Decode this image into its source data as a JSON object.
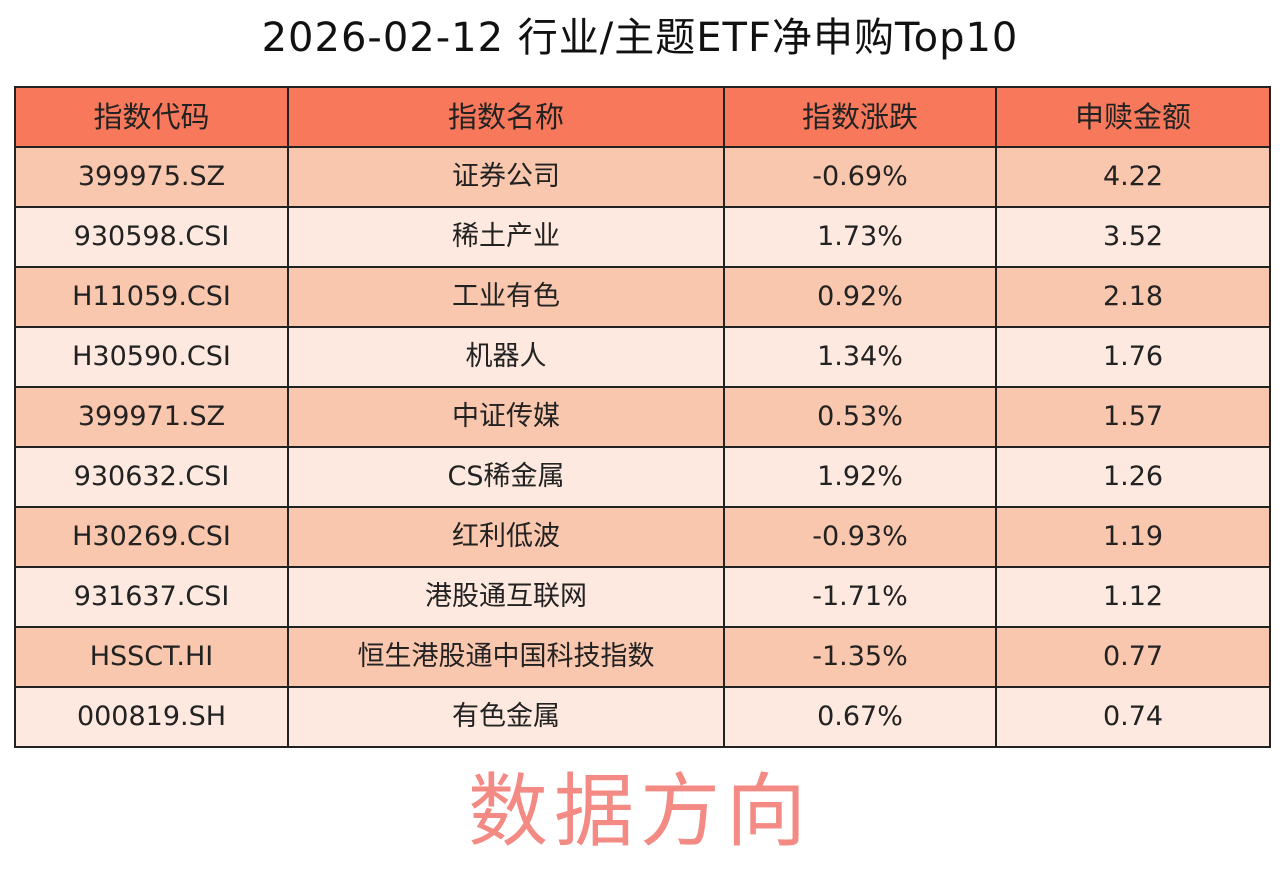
{
  "title": "2026-02-12 行业/主题ETF净申购Top10",
  "watermark": "数据方向",
  "colors": {
    "header": "#F7785A",
    "row_odd": "#F9C6AE",
    "row_even": "#FDE9DF",
    "watermark": "#EB3C32"
  },
  "chart_data": {
    "type": "table",
    "title": "2026-02-12 行业/主题ETF净申购Top10",
    "columns": [
      "指数代码",
      "指数名称",
      "指数涨跌",
      "申赎金额"
    ],
    "rows": [
      [
        "399975.SZ",
        "证券公司",
        "-0.69%",
        "4.22"
      ],
      [
        "930598.CSI",
        "稀土产业",
        "1.73%",
        "3.52"
      ],
      [
        "H11059.CSI",
        "工业有色",
        "0.92%",
        "2.18"
      ],
      [
        "H30590.CSI",
        "机器人",
        "1.34%",
        "1.76"
      ],
      [
        "399971.SZ",
        "中证传媒",
        "0.53%",
        "1.57"
      ],
      [
        "930632.CSI",
        "CS稀金属",
        "1.92%",
        "1.26"
      ],
      [
        "H30269.CSI",
        "红利低波",
        "-0.93%",
        "1.19"
      ],
      [
        "931637.CSI",
        "港股通互联网",
        "-1.71%",
        "1.12"
      ],
      [
        "HSSCT.HI",
        "恒生港股通中国科技指数",
        "-1.35%",
        "0.77"
      ],
      [
        "000819.SH",
        "有色金属",
        "0.67%",
        "0.74"
      ]
    ]
  }
}
